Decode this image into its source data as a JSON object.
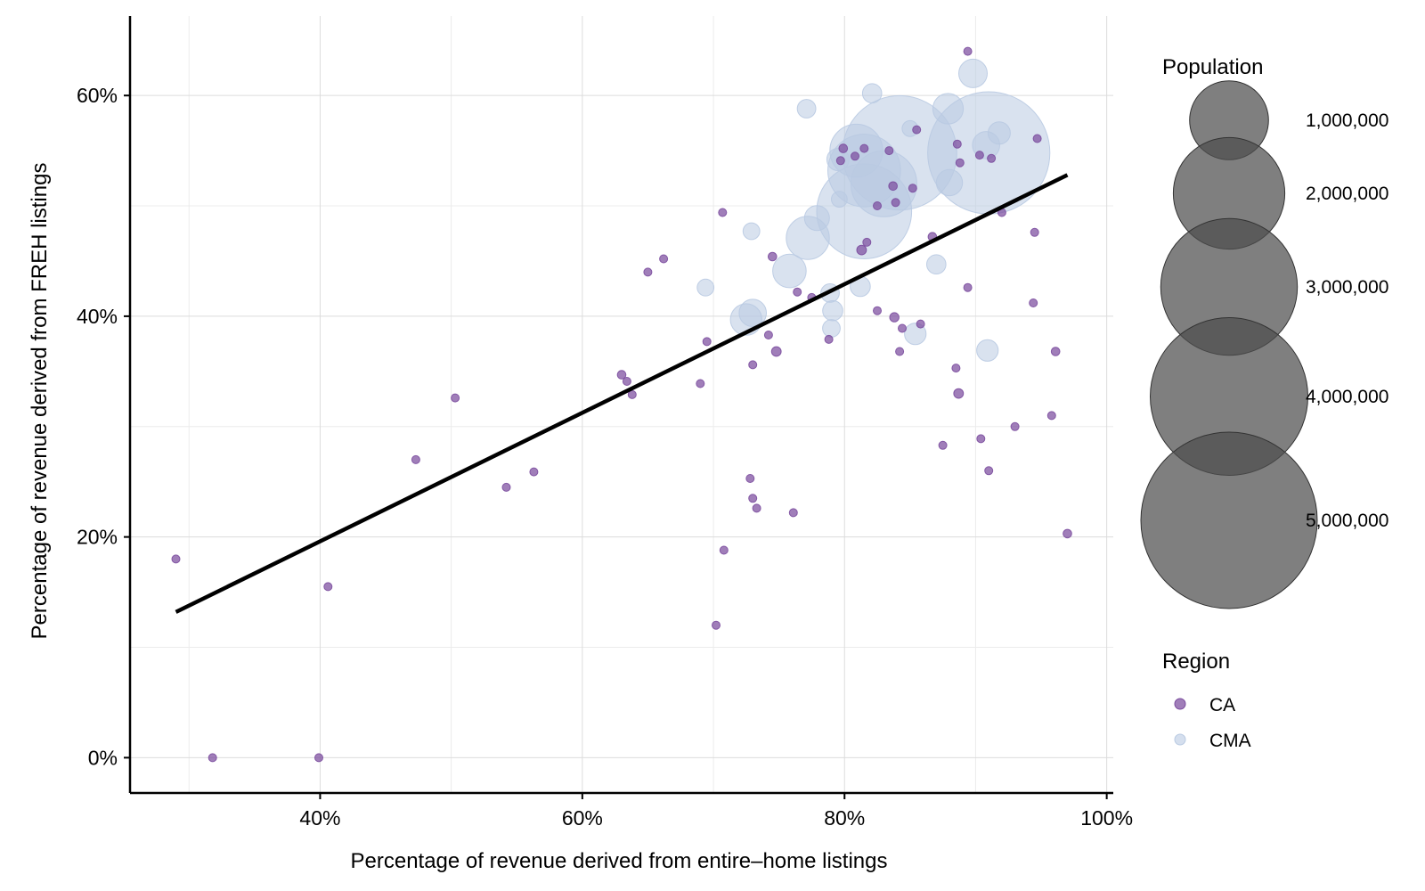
{
  "colors": {
    "CA": "#7b4c9e",
    "CMA": "#b9cae2",
    "size_legend": "#4d4d4d",
    "trend": "#000000"
  },
  "chart_data": {
    "type": "scatter",
    "title": "",
    "xlabel": "Percentage of revenue derived from entire–home listings",
    "ylabel": "Percentage of revenue derived from FREH listings",
    "xlim": [
      25.5,
      100.5
    ],
    "ylim": [
      -3.2,
      67.2
    ],
    "x_ticks": [
      40,
      60,
      80,
      100
    ],
    "x_tick_labels": [
      "40%",
      "60%",
      "80%",
      "100%"
    ],
    "y_ticks": [
      0,
      20,
      40,
      60
    ],
    "y_tick_labels": [
      "0%",
      "20%",
      "40%",
      "60%"
    ],
    "grid": true,
    "trend_line": {
      "x": [
        29.0,
        97.0
      ],
      "y": [
        13.2,
        52.8
      ]
    },
    "size_legend": {
      "title": "Population",
      "values": [
        1000000,
        2000000,
        3000000,
        4000000,
        5000000
      ],
      "labels": [
        "1,000,000",
        "2,000,000",
        "3,000,000",
        "4,000,000",
        "5,000,000"
      ]
    },
    "color_legend": {
      "title": "Region",
      "entries": [
        "CA",
        "CMA"
      ],
      "placement": "right"
    },
    "series": [
      {
        "name": "CMA",
        "points": [
          [
            84.2,
            54.8,
            2100000
          ],
          [
            91.0,
            54.8,
            2400000
          ],
          [
            81.5,
            49.5,
            1450000
          ],
          [
            81.5,
            53.2,
            850000
          ],
          [
            83.0,
            52.0,
            700000
          ],
          [
            80.9,
            55.0,
            450000
          ],
          [
            77.2,
            47.1,
            300000
          ],
          [
            75.8,
            44.1,
            180000
          ],
          [
            72.5,
            39.7,
            160000
          ],
          [
            73.0,
            40.3,
            120000
          ],
          [
            89.8,
            62.0,
            130000
          ],
          [
            87.9,
            58.8,
            150000
          ],
          [
            88.0,
            52.1,
            110000
          ],
          [
            90.8,
            55.5,
            120000
          ],
          [
            91.8,
            56.6,
            80000
          ],
          [
            77.9,
            48.9,
            100000
          ],
          [
            79.5,
            54.2,
            80000
          ],
          [
            85.4,
            38.4,
            75000
          ],
          [
            90.9,
            36.9,
            75000
          ],
          [
            82.1,
            60.2,
            60000
          ],
          [
            77.1,
            58.8,
            55000
          ],
          [
            79.1,
            40.5,
            65000
          ],
          [
            78.9,
            42.1,
            55000
          ],
          [
            81.2,
            42.7,
            65000
          ],
          [
            87.0,
            44.7,
            60000
          ],
          [
            79.0,
            38.9,
            50000
          ],
          [
            72.9,
            47.7,
            45000
          ],
          [
            69.4,
            42.6,
            45000
          ],
          [
            79.6,
            50.6,
            40000
          ],
          [
            85.0,
            57.0,
            40000
          ]
        ]
      },
      {
        "name": "CA",
        "points": [
          [
            89.4,
            64.0,
            8000
          ],
          [
            85.5,
            56.9,
            8000
          ],
          [
            94.7,
            56.1,
            5000
          ],
          [
            79.9,
            55.2,
            12000
          ],
          [
            80.8,
            54.5,
            8000
          ],
          [
            79.7,
            54.1,
            6000
          ],
          [
            81.5,
            55.2,
            8000
          ],
          [
            83.4,
            55.0,
            8000
          ],
          [
            91.2,
            54.3,
            10000
          ],
          [
            88.8,
            53.9,
            6000
          ],
          [
            88.6,
            55.6,
            6000
          ],
          [
            90.3,
            54.6,
            5000
          ],
          [
            85.2,
            51.6,
            6000
          ],
          [
            83.7,
            51.8,
            12000
          ],
          [
            82.5,
            50.0,
            10000
          ],
          [
            83.9,
            50.3,
            8000
          ],
          [
            92.0,
            49.4,
            5000
          ],
          [
            70.7,
            49.4,
            8000
          ],
          [
            86.7,
            47.2,
            12000
          ],
          [
            94.5,
            47.6,
            7000
          ],
          [
            81.3,
            46.0,
            15000
          ],
          [
            81.7,
            46.7,
            5000
          ],
          [
            74.5,
            45.4,
            12000
          ],
          [
            66.2,
            45.2,
            7000
          ],
          [
            65.0,
            44.0,
            7000
          ],
          [
            89.4,
            42.6,
            3000
          ],
          [
            76.4,
            42.2,
            7000
          ],
          [
            77.5,
            41.7,
            8000
          ],
          [
            94.4,
            41.2,
            10000
          ],
          [
            82.5,
            40.5,
            7000
          ],
          [
            83.8,
            39.9,
            14000
          ],
          [
            85.8,
            39.3,
            8000
          ],
          [
            84.4,
            38.9,
            5000
          ],
          [
            74.2,
            38.3,
            8000
          ],
          [
            78.8,
            37.9,
            5000
          ],
          [
            69.5,
            37.7,
            4000
          ],
          [
            74.8,
            36.8,
            15000
          ],
          [
            84.2,
            36.8,
            2000
          ],
          [
            96.1,
            36.8,
            12000
          ],
          [
            73.0,
            35.6,
            9000
          ],
          [
            88.5,
            35.3,
            4000
          ],
          [
            63.0,
            34.7,
            12000
          ],
          [
            63.4,
            34.1,
            6000
          ],
          [
            69.0,
            33.9,
            5000
          ],
          [
            63.8,
            32.9,
            4000
          ],
          [
            88.7,
            33.0,
            15000
          ],
          [
            50.3,
            32.6,
            5000
          ],
          [
            95.8,
            31.0,
            9000
          ],
          [
            93.0,
            30.0,
            10000
          ],
          [
            90.4,
            28.9,
            10000
          ],
          [
            87.5,
            28.3,
            3000
          ],
          [
            47.3,
            27.0,
            4000
          ],
          [
            91.0,
            26.0,
            5000
          ],
          [
            56.3,
            25.9,
            6000
          ],
          [
            72.8,
            25.3,
            10000
          ],
          [
            54.2,
            24.5,
            10000
          ],
          [
            73.0,
            23.5,
            4000
          ],
          [
            73.3,
            22.6,
            5000
          ],
          [
            76.1,
            22.2,
            4000
          ],
          [
            97.0,
            20.3,
            12000
          ],
          [
            70.8,
            18.8,
            4000
          ],
          [
            29.0,
            18.0,
            6000
          ],
          [
            40.6,
            15.5,
            9000
          ],
          [
            70.2,
            12.0,
            5000
          ],
          [
            31.8,
            0.0,
            4000
          ],
          [
            39.9,
            0.0,
            5000
          ]
        ]
      }
    ]
  }
}
